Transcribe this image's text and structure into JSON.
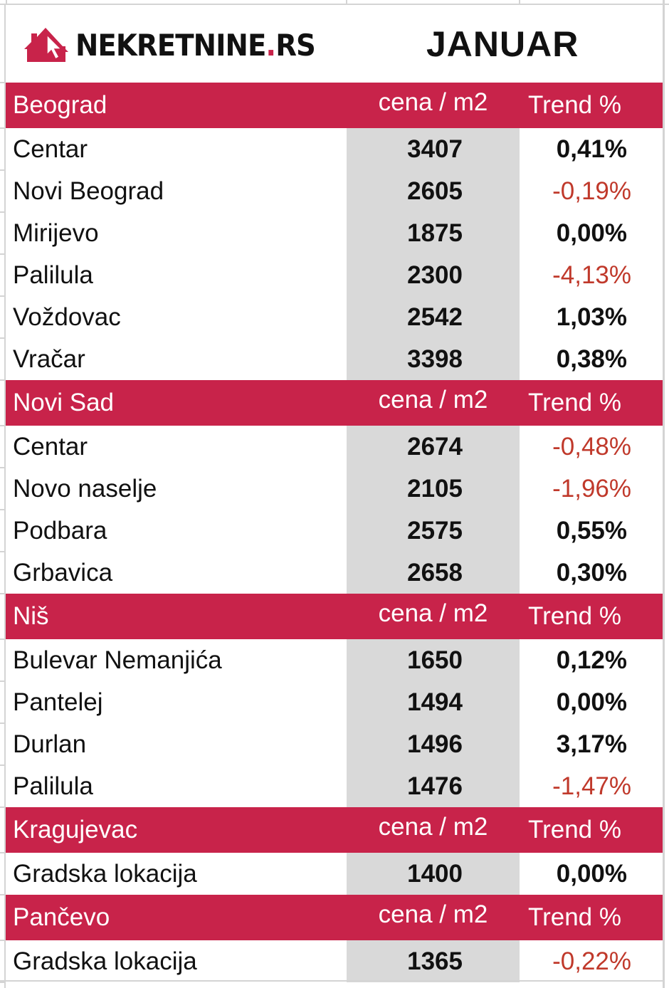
{
  "header": {
    "logo_text": "NEKRETNINE",
    "logo_dot": ".",
    "logo_tld": "RS",
    "month": "JANUAR"
  },
  "colors": {
    "header_bg": "#c8234a",
    "price_col_bg": "#d9d9d9",
    "negative_text": "#c0392b",
    "text": "#111111"
  },
  "columns": {
    "price_label": "cena / m2",
    "trend_label": "Trend %"
  },
  "sections": [
    {
      "city": "Beograd",
      "price_label": "cena / m2",
      "trend_label": "Trend %",
      "rows": [
        {
          "district": "Centar",
          "price": "3407",
          "trend": "0,41%",
          "negative": false
        },
        {
          "district": "Novi Beograd",
          "price": "2605",
          "trend": "-0,19%",
          "negative": true
        },
        {
          "district": "Mirijevo",
          "price": "1875",
          "trend": "0,00%",
          "negative": false
        },
        {
          "district": "Palilula",
          "price": "2300",
          "trend": "-4,13%",
          "negative": true
        },
        {
          "district": "Voždovac",
          "price": "2542",
          "trend": "1,03%",
          "negative": false
        },
        {
          "district": "Vračar",
          "price": "3398",
          "trend": "0,38%",
          "negative": false
        }
      ]
    },
    {
      "city": "Novi Sad",
      "price_label": "cena / m2",
      "trend_label": "Trend %",
      "rows": [
        {
          "district": "Centar",
          "price": "2674",
          "trend": "-0,48%",
          "negative": true
        },
        {
          "district": "Novo naselje",
          "price": "2105",
          "trend": "-1,96%",
          "negative": true
        },
        {
          "district": "Podbara",
          "price": "2575",
          "trend": "0,55%",
          "negative": false
        },
        {
          "district": "Grbavica",
          "price": "2658",
          "trend": "0,30%",
          "negative": false
        }
      ]
    },
    {
      "city": "Niš",
      "price_label": "cena / m2",
      "trend_label": "Trend %",
      "rows": [
        {
          "district": "Bulevar Nemanjića",
          "price": "1650",
          "trend": "0,12%",
          "negative": false
        },
        {
          "district": "Pantelej",
          "price": "1494",
          "trend": "0,00%",
          "negative": false
        },
        {
          "district": "Durlan",
          "price": "1496",
          "trend": "3,17%",
          "negative": false
        },
        {
          "district": "Palilula",
          "price": "1476",
          "trend": "-1,47%",
          "negative": true
        }
      ]
    },
    {
      "city": "Kragujevac",
      "price_label": "cena / m2",
      "trend_label": "Trend %",
      "rows": [
        {
          "district": "Gradska lokacija",
          "price": "1400",
          "trend": "0,00%",
          "negative": false
        }
      ]
    },
    {
      "city": "Pančevo",
      "price_label": "cena / m2",
      "trend_label": "Trend %",
      "rows": [
        {
          "district": "Gradska lokacija",
          "price": "1365",
          "trend": "-0,22%",
          "negative": true
        }
      ]
    }
  ]
}
